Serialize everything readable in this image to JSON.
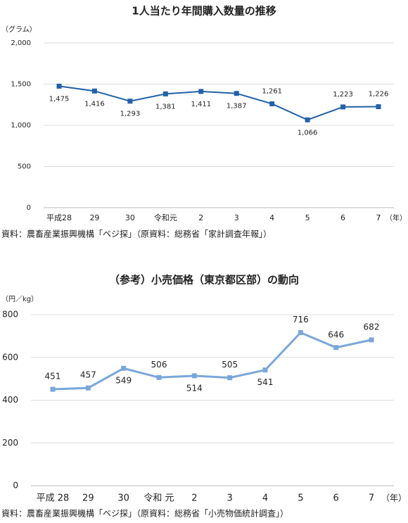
{
  "chart_data": [
    {
      "type": "line",
      "title": "1人当たり年間購入数量の推移",
      "y_label": "（グラム）",
      "x_label": "（年）",
      "categories": [
        "平成28",
        "29",
        "30",
        "令和元",
        "2",
        "3",
        "4",
        "5",
        "6",
        "7"
      ],
      "values": [
        1475,
        1416,
        1293,
        1381,
        1411,
        1387,
        1261,
        1066,
        1223,
        1226
      ],
      "value_labels": [
        "1,475",
        "1,416",
        "1,293",
        "1,381",
        "1,411",
        "1,387",
        "1,261",
        "1,066",
        "1,223",
        "1,226"
      ],
      "color": "#2161a9",
      "ylim": [
        0,
        2000
      ],
      "yticks": [
        0,
        {
          "value": 500,
          "label": "500"
        },
        {
          "value": 1000,
          "label": "1,000"
        },
        {
          "value": 1500,
          "label": "1,500"
        },
        {
          "value": 2000,
          "label": "2,000"
        }
      ],
      "grid": true,
      "source": "資料：農畜産業振興機構「ベジ探」（原資料：総務省「家計調査年報」）"
    },
    {
      "type": "line",
      "title": "（参考）小売価格（東京都区部）の動向",
      "y_label": "（円／kg）",
      "x_label": "（年）",
      "categories": [
        "平成 28",
        "29",
        "30",
        "令和 元",
        "2",
        "3",
        "4",
        "5",
        "6",
        "7"
      ],
      "values": [
        451,
        457,
        549,
        506,
        514,
        505,
        541,
        716,
        646,
        682
      ],
      "color": "#7aa7da",
      "ylim": [
        0,
        800
      ],
      "yticks": [
        0,
        200,
        400,
        600,
        800
      ],
      "grid": true,
      "source": "資料：農畜産業振興機構「ベジ探」（原資料：総務省「小売物価統計調査」）"
    }
  ]
}
